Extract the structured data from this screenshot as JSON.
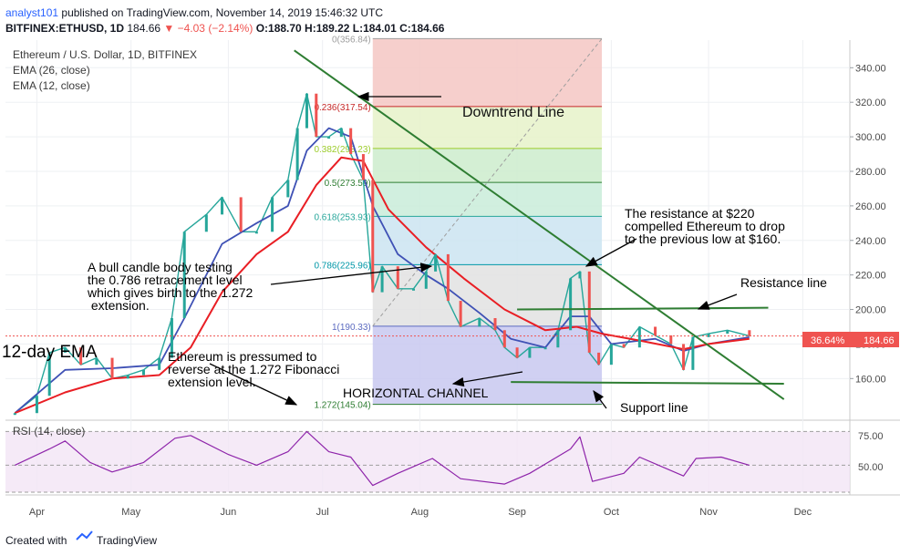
{
  "header": {
    "user": "analyst101",
    "published": "published on TradingView.com, November 14, 2019 15:46:32 UTC",
    "symbol": "BITFINEX:ETHUSD, 1D",
    "price": "184.66",
    "change": "▼ −4.03 (−2.14%)",
    "ohlc": "O:188.70 H:189.22 L:184.01 C:184.66"
  },
  "legend": {
    "title": "Ethereum / U.S. Dollar, 1D, BITFINEX",
    "ema26": "EMA (26, close)",
    "ema12": "EMA (12, close)"
  },
  "price_badge": {
    "pct": "36.64%",
    "price": "184.66"
  },
  "annotations": {
    "downtrend": "Downtrend Line",
    "resistance_220": [
      "The resistance at $220",
      "compelled Ethereum to drop",
      "to the previous low at $160."
    ],
    "resistance_line": "Resistance line",
    "bull_candle": [
      "A bull candle body testing",
      "the 0.786 retracement level",
      "which gives birth to the 1.272",
      " extension."
    ],
    "ema12": "12-day EMA",
    "pressured": [
      "Ethereum is pressumed to",
      "reverse at the 1.272 Fibonacci",
      "extension level."
    ],
    "channel": "HORIZONTAL CHANNEL",
    "support": "Support line"
  },
  "rsi": {
    "label": "RSI (14, close)",
    "ticks": [
      "75.00",
      "50.00"
    ]
  },
  "footer": {
    "created_with": "Created with",
    "brand": "TradingView"
  },
  "colors": {
    "up": "#26a69a",
    "down": "#ef5350",
    "ema12": "#3f51b5",
    "ema26": "#e91e24",
    "trend": "#2e7d32",
    "rsi": "#8e24aa",
    "badge": "#ef5350"
  },
  "chart_data": {
    "type": "line",
    "title": "Ethereum / U.S. Dollar, 1D, BITFINEX",
    "x_ticks": [
      "Apr",
      "May",
      "Jun",
      "Jul",
      "Aug",
      "Sep",
      "Oct",
      "Nov",
      "Dec"
    ],
    "y_ticks": [
      340,
      320,
      300,
      280,
      260,
      240,
      220,
      200,
      180,
      160
    ],
    "ylim": [
      138,
      356
    ],
    "fib_levels": [
      {
        "ratio": "0",
        "price": 356.84,
        "label": "0(356.84)"
      },
      {
        "ratio": "0.236",
        "price": 317.54,
        "label": "0.236(317.54)"
      },
      {
        "ratio": "0.382",
        "price": 293.23,
        "label": "0.382(293.23)"
      },
      {
        "ratio": "0.5",
        "price": 273.59,
        "label": "0.5(273.59)"
      },
      {
        "ratio": "0.618",
        "price": 253.93,
        "label": "0.618(253.93)"
      },
      {
        "ratio": "0.786",
        "price": 225.96,
        "label": "0.786(225.96)"
      },
      {
        "ratio": "1",
        "price": 190.33,
        "label": "1(190.33)"
      },
      {
        "ratio": "1.272",
        "price": 145.04,
        "label": "1.272(145.04)"
      }
    ],
    "series": [
      {
        "name": "ETHUSD",
        "points": [
          [
            "2019-03-25",
            140
          ],
          [
            "2019-04-01",
            150
          ],
          [
            "2019-04-05",
            175
          ],
          [
            "2019-04-10",
            178
          ],
          [
            "2019-04-15",
            168
          ],
          [
            "2019-04-20",
            172
          ],
          [
            "2019-04-25",
            160
          ],
          [
            "2019-04-30",
            162
          ],
          [
            "2019-05-05",
            165
          ],
          [
            "2019-05-10",
            172
          ],
          [
            "2019-05-14",
            195
          ],
          [
            "2019-05-18",
            245
          ],
          [
            "2019-05-25",
            255
          ],
          [
            "2019-05-30",
            265
          ],
          [
            "2019-06-05",
            245
          ],
          [
            "2019-06-10",
            245
          ],
          [
            "2019-06-15",
            265
          ],
          [
            "2019-06-20",
            275
          ],
          [
            "2019-06-23",
            305
          ],
          [
            "2019-06-26",
            325
          ],
          [
            "2019-06-29",
            300
          ],
          [
            "2019-07-03",
            300
          ],
          [
            "2019-07-07",
            305
          ],
          [
            "2019-07-10",
            290
          ],
          [
            "2019-07-14",
            275
          ],
          [
            "2019-07-17",
            210
          ],
          [
            "2019-07-20",
            225
          ],
          [
            "2019-07-25",
            212
          ],
          [
            "2019-07-30",
            212
          ],
          [
            "2019-08-03",
            222
          ],
          [
            "2019-08-06",
            232
          ],
          [
            "2019-08-10",
            205
          ],
          [
            "2019-08-14",
            190
          ],
          [
            "2019-08-20",
            195
          ],
          [
            "2019-08-25",
            188
          ],
          [
            "2019-08-28",
            178
          ],
          [
            "2019-09-01",
            172
          ],
          [
            "2019-09-05",
            178
          ],
          [
            "2019-09-10",
            178
          ],
          [
            "2019-09-14",
            188
          ],
          [
            "2019-09-18",
            218
          ],
          [
            "2019-09-21",
            222
          ],
          [
            "2019-09-24",
            175
          ],
          [
            "2019-09-27",
            168
          ],
          [
            "2019-10-01",
            180
          ],
          [
            "2019-10-05",
            178
          ],
          [
            "2019-10-10",
            190
          ],
          [
            "2019-10-15",
            185
          ],
          [
            "2019-10-20",
            180
          ],
          [
            "2019-10-24",
            165
          ],
          [
            "2019-10-27",
            184
          ],
          [
            "2019-11-01",
            186
          ],
          [
            "2019-11-07",
            188
          ],
          [
            "2019-11-14",
            184.66
          ]
        ]
      },
      {
        "name": "EMA (12, close)",
        "points": [
          [
            "2019-03-25",
            140
          ],
          [
            "2019-04-10",
            165
          ],
          [
            "2019-04-25",
            166
          ],
          [
            "2019-05-10",
            168
          ],
          [
            "2019-05-18",
            195
          ],
          [
            "2019-05-30",
            238
          ],
          [
            "2019-06-10",
            250
          ],
          [
            "2019-06-20",
            260
          ],
          [
            "2019-06-26",
            292
          ],
          [
            "2019-07-03",
            305
          ],
          [
            "2019-07-10",
            300
          ],
          [
            "2019-07-17",
            260
          ],
          [
            "2019-07-25",
            232
          ],
          [
            "2019-08-03",
            220
          ],
          [
            "2019-08-10",
            212
          ],
          [
            "2019-08-20",
            198
          ],
          [
            "2019-08-30",
            183
          ],
          [
            "2019-09-10",
            178
          ],
          [
            "2019-09-18",
            196
          ],
          [
            "2019-09-24",
            196
          ],
          [
            "2019-10-01",
            180
          ],
          [
            "2019-10-15",
            183
          ],
          [
            "2019-10-24",
            176
          ],
          [
            "2019-11-01",
            180
          ],
          [
            "2019-11-14",
            184
          ]
        ]
      },
      {
        "name": "EMA (26, close)",
        "points": [
          [
            "2019-03-25",
            140
          ],
          [
            "2019-04-10",
            152
          ],
          [
            "2019-04-25",
            160
          ],
          [
            "2019-05-10",
            162
          ],
          [
            "2019-05-20",
            178
          ],
          [
            "2019-05-30",
            210
          ],
          [
            "2019-06-10",
            232
          ],
          [
            "2019-06-20",
            245
          ],
          [
            "2019-06-29",
            272
          ],
          [
            "2019-07-07",
            288
          ],
          [
            "2019-07-14",
            286
          ],
          [
            "2019-07-22",
            258
          ],
          [
            "2019-08-03",
            236
          ],
          [
            "2019-08-15",
            218
          ],
          [
            "2019-08-28",
            200
          ],
          [
            "2019-09-10",
            188
          ],
          [
            "2019-09-20",
            190
          ],
          [
            "2019-09-28",
            186
          ],
          [
            "2019-10-10",
            182
          ],
          [
            "2019-10-24",
            177
          ],
          [
            "2019-11-01",
            180
          ],
          [
            "2019-11-14",
            183
          ]
        ]
      }
    ],
    "rsi": {
      "name": "RSI (14, close)",
      "y_ticks": [
        75,
        50
      ],
      "points": [
        [
          "2019-03-25",
          50
        ],
        [
          "2019-04-05",
          62
        ],
        [
          "2019-04-10",
          68
        ],
        [
          "2019-04-18",
          52
        ],
        [
          "2019-04-25",
          45
        ],
        [
          "2019-05-05",
          52
        ],
        [
          "2019-05-15",
          70
        ],
        [
          "2019-05-20",
          72
        ],
        [
          "2019-06-01",
          58
        ],
        [
          "2019-06-10",
          50
        ],
        [
          "2019-06-20",
          60
        ],
        [
          "2019-06-26",
          75
        ],
        [
          "2019-07-03",
          60
        ],
        [
          "2019-07-10",
          56
        ],
        [
          "2019-07-17",
          35
        ],
        [
          "2019-07-25",
          44
        ],
        [
          "2019-08-05",
          55
        ],
        [
          "2019-08-14",
          40
        ],
        [
          "2019-08-28",
          36
        ],
        [
          "2019-09-05",
          44
        ],
        [
          "2019-09-18",
          62
        ],
        [
          "2019-09-21",
          71
        ],
        [
          "2019-09-25",
          38
        ],
        [
          "2019-10-05",
          44
        ],
        [
          "2019-10-10",
          56
        ],
        [
          "2019-10-24",
          42
        ],
        [
          "2019-10-28",
          55
        ],
        [
          "2019-11-05",
          56
        ],
        [
          "2019-11-14",
          50
        ]
      ]
    },
    "downtrend_line": [
      [
        "2019-06-22",
        350
      ],
      [
        "2019-11-25",
        148
      ]
    ],
    "resistance_line": [
      [
        "2019-09-01",
        200
      ],
      [
        "2019-11-20",
        201
      ]
    ],
    "support_line": [
      [
        "2019-08-30",
        158
      ],
      [
        "2019-11-25",
        157
      ]
    ],
    "arrows": "downtrend, resistance, bull candle, support, extension",
    "grid": true,
    "legend": "top-left"
  }
}
